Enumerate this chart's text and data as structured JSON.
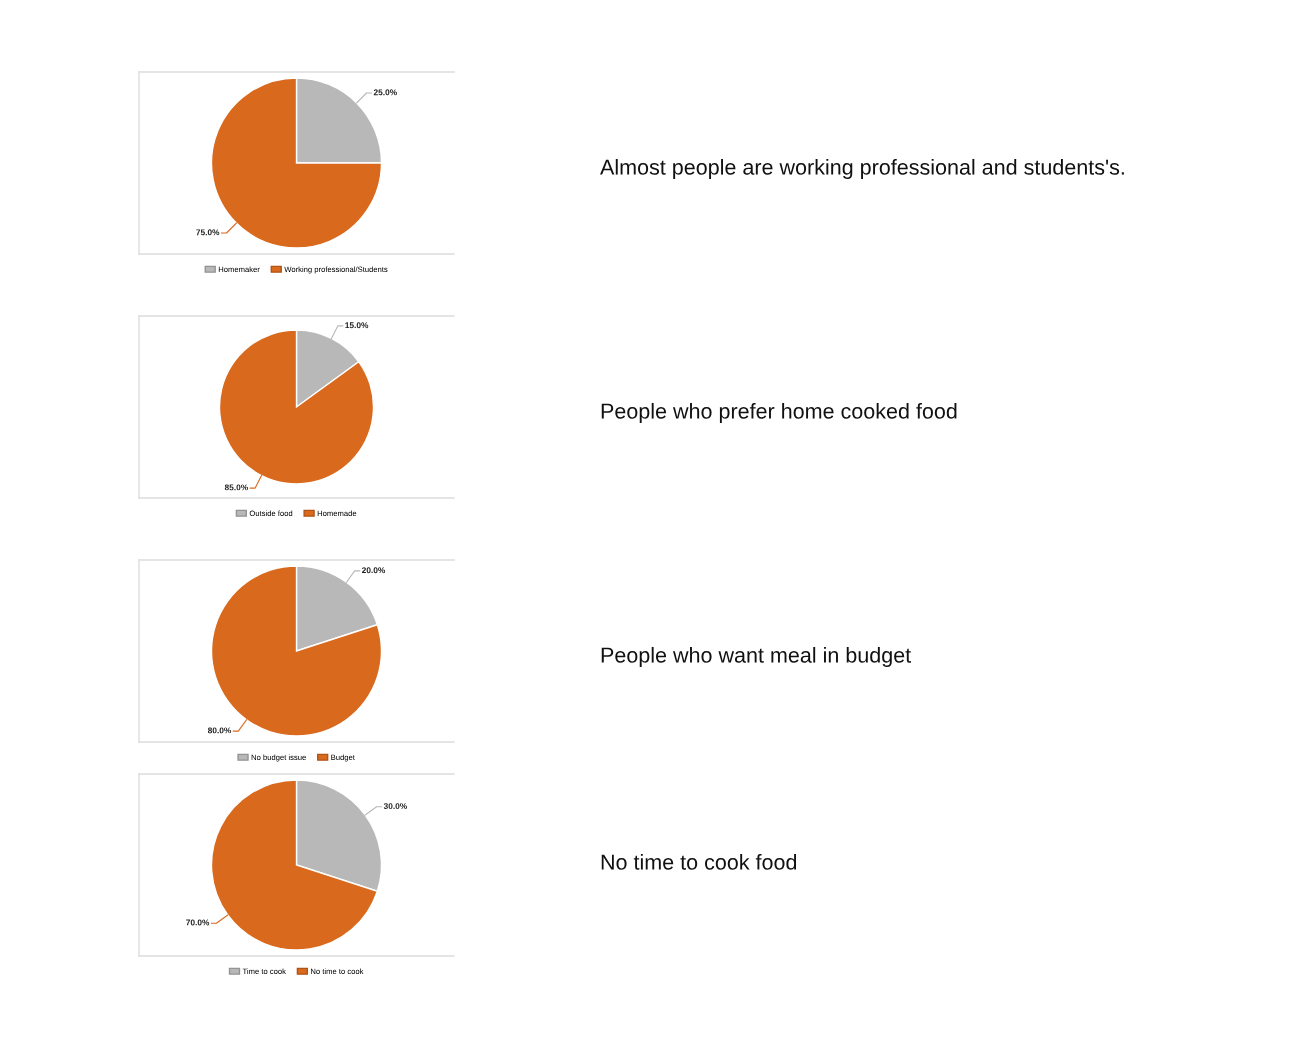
{
  "chart_data": [
    {
      "type": "pie",
      "title": "Almost people are working professional and students's.",
      "categories": [
        "Homemaker",
        "Working professional/Students"
      ],
      "values": [
        25,
        75
      ],
      "value_labels": [
        "25.0%",
        "75.0%"
      ],
      "colors": [
        "#b8b8b8",
        "#d9691d"
      ],
      "legend": "bottom"
    },
    {
      "type": "pie",
      "title": "People who prefer home cooked food",
      "categories": [
        "Outside food",
        "Homemade"
      ],
      "values": [
        15,
        85
      ],
      "value_labels": [
        "15.0%",
        "85.0%"
      ],
      "colors": [
        "#b8b8b8",
        "#d9691d"
      ],
      "legend": "bottom"
    },
    {
      "type": "pie",
      "title": "People who want meal in budget",
      "categories": [
        "No budget issue",
        "Budget"
      ],
      "values": [
        20,
        80
      ],
      "value_labels": [
        "20.0%",
        "80.0%"
      ],
      "colors": [
        "#b8b8b8",
        "#d9691d"
      ],
      "legend": "bottom"
    },
    {
      "type": "pie",
      "title": "No time to cook food",
      "categories": [
        "Time to cook",
        "No time to cook"
      ],
      "values": [
        30,
        70
      ],
      "value_labels": [
        "30.0%",
        "70.0%"
      ],
      "colors": [
        "#b8b8b8",
        "#d9691d"
      ],
      "legend": "bottom"
    }
  ]
}
